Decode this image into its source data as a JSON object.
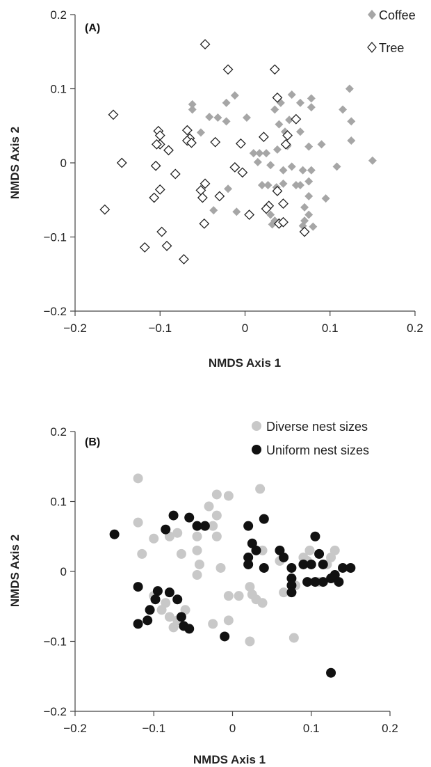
{
  "chart_data": [
    {
      "type": "scatter",
      "panel_label": "(A)",
      "xlabel": "NMDS Axis 1",
      "ylabel": "NMDS Axis 2",
      "xlim": [
        -0.2,
        0.2
      ],
      "ylim": [
        -0.2,
        0.2
      ],
      "xticks": [
        "−0.2",
        "−0.1",
        "0",
        "0.1",
        "0.2"
      ],
      "yticks": [
        "0.2",
        "0.1",
        "0",
        "−0.1",
        "−0.2"
      ],
      "grid": false,
      "legend_position": "top-right",
      "series": [
        {
          "name": "Coffee",
          "marker": "filled-diamond",
          "color": "#a6a6a6",
          "points": [
            [
              -0.062,
              0.079
            ],
            [
              -0.062,
              0.072
            ],
            [
              -0.052,
              0.041
            ],
            [
              -0.042,
              0.062
            ],
            [
              -0.032,
              0.061
            ],
            [
              -0.022,
              0.081
            ],
            [
              -0.012,
              0.091
            ],
            [
              0.002,
              0.061
            ],
            [
              -0.022,
              0.056
            ],
            [
              0.042,
              0.081
            ],
            [
              0.035,
              0.072
            ],
            [
              0.055,
              0.092
            ],
            [
              0.065,
              0.081
            ],
            [
              0.052,
              0.058
            ],
            [
              0.04,
              0.052
            ],
            [
              0.047,
              0.042
            ],
            [
              0.065,
              0.042
            ],
            [
              0.078,
              0.087
            ],
            [
              0.078,
              0.075
            ],
            [
              0.115,
              0.072
            ],
            [
              0.123,
              0.1
            ],
            [
              0.125,
              0.056
            ],
            [
              0.09,
              0.025
            ],
            [
              0.075,
              0.022
            ],
            [
              0.05,
              0.023
            ],
            [
              0.038,
              0.018
            ],
            [
              0.01,
              0.013
            ],
            [
              0.017,
              0.013
            ],
            [
              0.025,
              0.013
            ],
            [
              0.015,
              0.001
            ],
            [
              0.03,
              -0.003
            ],
            [
              0.045,
              -0.01
            ],
            [
              0.055,
              -0.005
            ],
            [
              0.068,
              -0.01
            ],
            [
              0.078,
              -0.01
            ],
            [
              0.108,
              -0.005
            ],
            [
              0.075,
              -0.025
            ],
            [
              0.065,
              -0.03
            ],
            [
              0.06,
              -0.03
            ],
            [
              0.045,
              -0.028
            ],
            [
              0.037,
              -0.033
            ],
            [
              0.027,
              -0.03
            ],
            [
              0.02,
              -0.03
            ],
            [
              0.075,
              -0.045
            ],
            [
              0.095,
              -0.048
            ],
            [
              0.07,
              -0.06
            ],
            [
              0.075,
              -0.07
            ],
            [
              0.07,
              -0.078
            ],
            [
              0.068,
              -0.085
            ],
            [
              0.08,
              -0.086
            ],
            [
              0.035,
              -0.078
            ],
            [
              0.04,
              -0.08
            ],
            [
              0.032,
              -0.083
            ],
            [
              0.03,
              -0.07
            ],
            [
              0.15,
              0.003
            ],
            [
              0.125,
              0.03
            ],
            [
              -0.01,
              -0.066
            ],
            [
              -0.037,
              -0.064
            ],
            [
              -0.02,
              -0.035
            ]
          ]
        },
        {
          "name": "Tree",
          "marker": "open-diamond",
          "color": "#222222",
          "points": [
            [
              -0.047,
              0.16
            ],
            [
              -0.02,
              0.126
            ],
            [
              0.035,
              0.126
            ],
            [
              0.038,
              0.088
            ],
            [
              -0.155,
              0.065
            ],
            [
              -0.102,
              0.043
            ],
            [
              -0.1,
              0.037
            ],
            [
              -0.068,
              0.044
            ],
            [
              -0.065,
              0.033
            ],
            [
              -0.068,
              0.03
            ],
            [
              -0.063,
              0.027
            ],
            [
              -0.1,
              0.025
            ],
            [
              -0.104,
              0.025
            ],
            [
              -0.09,
              0.017
            ],
            [
              -0.035,
              0.028
            ],
            [
              -0.005,
              0.026
            ],
            [
              0.022,
              0.035
            ],
            [
              0.05,
              0.037
            ],
            [
              0.06,
              0.059
            ],
            [
              0.048,
              0.025
            ],
            [
              -0.145,
              0.0
            ],
            [
              -0.105,
              -0.004
            ],
            [
              -0.082,
              -0.015
            ],
            [
              -0.012,
              -0.006
            ],
            [
              -0.003,
              -0.013
            ],
            [
              -0.1,
              -0.036
            ],
            [
              -0.047,
              -0.028
            ],
            [
              -0.052,
              -0.037
            ],
            [
              -0.03,
              -0.045
            ],
            [
              -0.107,
              -0.047
            ],
            [
              -0.05,
              -0.047
            ],
            [
              0.038,
              -0.038
            ],
            [
              0.045,
              -0.055
            ],
            [
              0.028,
              -0.058
            ],
            [
              0.025,
              -0.062
            ],
            [
              -0.165,
              -0.063
            ],
            [
              0.005,
              -0.07
            ],
            [
              -0.048,
              -0.082
            ],
            [
              0.04,
              -0.082
            ],
            [
              0.045,
              -0.08
            ],
            [
              -0.098,
              -0.093
            ],
            [
              -0.092,
              -0.112
            ],
            [
              -0.118,
              -0.114
            ],
            [
              -0.072,
              -0.13
            ],
            [
              0.07,
              -0.093
            ]
          ]
        }
      ]
    },
    {
      "type": "scatter",
      "panel_label": "(B)",
      "xlabel": "NMDS Axis 1",
      "ylabel": "NMDS Axis 2",
      "xlim": [
        -0.2,
        0.2
      ],
      "ylim": [
        -0.2,
        0.2
      ],
      "xticks": [
        "−0.2",
        "−0.1",
        "0",
        "0.1",
        "0.2"
      ],
      "yticks": [
        "0.2",
        "0.1",
        "0",
        "−0.1",
        "−0.2"
      ],
      "grid": false,
      "legend_position": "top-right",
      "series": [
        {
          "name": "Diverse nest sizes",
          "marker": "filled-circle",
          "color": "#c8c8c8",
          "points": [
            [
              -0.12,
              0.133
            ],
            [
              -0.12,
              0.07
            ],
            [
              -0.115,
              0.025
            ],
            [
              -0.1,
              0.047
            ],
            [
              -0.07,
              0.055
            ],
            [
              -0.08,
              0.05
            ],
            [
              -0.065,
              0.025
            ],
            [
              -0.045,
              0.05
            ],
            [
              -0.045,
              0.03
            ],
            [
              -0.042,
              0.01
            ],
            [
              -0.045,
              -0.005
            ],
            [
              -0.03,
              0.093
            ],
            [
              -0.02,
              0.11
            ],
            [
              -0.005,
              0.108
            ],
            [
              -0.02,
              0.08
            ],
            [
              -0.025,
              0.065
            ],
            [
              -0.02,
              0.05
            ],
            [
              -0.015,
              0.005
            ],
            [
              0.035,
              0.118
            ],
            [
              0.038,
              0.03
            ],
            [
              0.02,
              0.02
            ],
            [
              0.06,
              0.015
            ],
            [
              0.09,
              0.02
            ],
            [
              0.098,
              0.03
            ],
            [
              0.095,
              0.015
            ],
            [
              0.13,
              0.03
            ],
            [
              0.125,
              0.02
            ],
            [
              0.12,
              0.01
            ],
            [
              0.065,
              -0.03
            ],
            [
              0.08,
              -0.02
            ],
            [
              0.11,
              -0.015
            ],
            [
              -0.005,
              -0.035
            ],
            [
              0.008,
              -0.035
            ],
            [
              0.022,
              -0.022
            ],
            [
              0.025,
              -0.033
            ],
            [
              0.03,
              -0.04
            ],
            [
              0.038,
              -0.045
            ],
            [
              -0.1,
              -0.035
            ],
            [
              -0.09,
              -0.055
            ],
            [
              -0.08,
              -0.065
            ],
            [
              -0.075,
              -0.08
            ],
            [
              -0.07,
              -0.07
            ],
            [
              -0.06,
              -0.055
            ],
            [
              -0.025,
              -0.075
            ],
            [
              -0.005,
              -0.07
            ],
            [
              0.022,
              -0.1
            ],
            [
              0.078,
              -0.095
            ],
            [
              -0.085,
              -0.045
            ]
          ]
        },
        {
          "name": "Uniform nest sizes",
          "marker": "filled-circle",
          "color": "#111111",
          "points": [
            [
              -0.15,
              0.053
            ],
            [
              -0.085,
              0.06
            ],
            [
              -0.075,
              0.08
            ],
            [
              -0.055,
              0.077
            ],
            [
              -0.045,
              0.065
            ],
            [
              -0.035,
              0.065
            ],
            [
              0.02,
              0.065
            ],
            [
              0.04,
              0.075
            ],
            [
              0.025,
              0.04
            ],
            [
              0.02,
              0.02
            ],
            [
              0.02,
              0.01
            ],
            [
              0.03,
              0.03
            ],
            [
              0.04,
              0.005
            ],
            [
              0.06,
              0.03
            ],
            [
              0.065,
              0.02
            ],
            [
              0.075,
              0.005
            ],
            [
              0.075,
              -0.01
            ],
            [
              0.075,
              -0.02
            ],
            [
              0.075,
              -0.03
            ],
            [
              0.09,
              0.01
            ],
            [
              0.1,
              0.01
            ],
            [
              0.095,
              -0.015
            ],
            [
              0.105,
              0.05
            ],
            [
              0.11,
              0.025
            ],
            [
              0.115,
              0.01
            ],
            [
              0.125,
              -0.01
            ],
            [
              0.13,
              -0.005
            ],
            [
              0.14,
              0.005
            ],
            [
              0.15,
              0.005
            ],
            [
              0.135,
              -0.015
            ],
            [
              0.105,
              -0.015
            ],
            [
              0.115,
              -0.015
            ],
            [
              0.125,
              -0.145
            ],
            [
              -0.12,
              -0.022
            ],
            [
              -0.12,
              -0.075
            ],
            [
              -0.105,
              -0.055
            ],
            [
              -0.108,
              -0.07
            ],
            [
              -0.095,
              -0.028
            ],
            [
              -0.08,
              -0.03
            ],
            [
              -0.07,
              -0.04
            ],
            [
              -0.065,
              -0.065
            ],
            [
              -0.062,
              -0.078
            ],
            [
              -0.055,
              -0.082
            ],
            [
              -0.01,
              -0.093
            ],
            [
              -0.098,
              -0.04
            ]
          ]
        }
      ]
    }
  ]
}
